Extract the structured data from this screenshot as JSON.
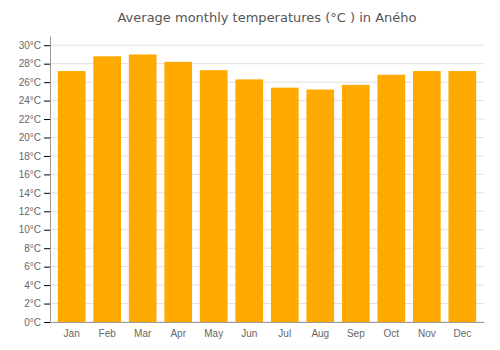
{
  "chart_data": {
    "type": "bar",
    "title": "Average monthly temperatures (°C ) in Aného",
    "categories": [
      "Jan",
      "Feb",
      "Mar",
      "Apr",
      "May",
      "Jun",
      "Jul",
      "Aug",
      "Sep",
      "Oct",
      "Nov",
      "Dec"
    ],
    "values": [
      27.2,
      28.8,
      29.0,
      28.2,
      27.3,
      26.3,
      25.4,
      25.2,
      25.7,
      26.8,
      27.2,
      27.2
    ],
    "color": "#FFAA00",
    "ylim": [
      0,
      31
    ],
    "yticks": [
      {
        "value": 0,
        "label": "0°C"
      },
      {
        "value": 2,
        "label": "2°C"
      },
      {
        "value": 4,
        "label": "4°C"
      },
      {
        "value": 6,
        "label": "6°C"
      },
      {
        "value": 8,
        "label": "8°C"
      },
      {
        "value": 10,
        "label": "10°C"
      },
      {
        "value": 12,
        "label": "12°C"
      },
      {
        "value": 14,
        "label": "14°C"
      },
      {
        "value": 16,
        "label": "16°C"
      },
      {
        "value": 18,
        "label": "18°C"
      },
      {
        "value": 20,
        "label": "20°C"
      },
      {
        "value": 22,
        "label": "22°C"
      },
      {
        "value": 24,
        "label": "24°C"
      },
      {
        "value": 26,
        "label": "26°C"
      },
      {
        "value": 28,
        "label": "28°C"
      },
      {
        "value": 30,
        "label": "30°C"
      }
    ],
    "grid": true
  }
}
